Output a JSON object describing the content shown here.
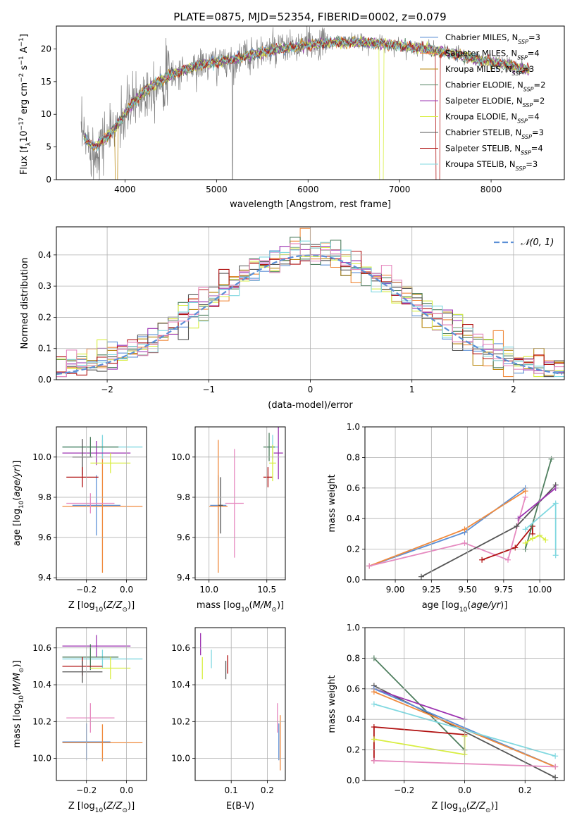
{
  "title": "PLATE=0875, MJD=52354, FIBERID=0002, z=0.079",
  "colors": {
    "Chabrier MILES": "#5b8fd6",
    "Salpeter MILES": "#f08a3c",
    "Kroupa MILES": "#b8860b",
    "Chabrier ELODIE": "#4f7f5f",
    "Salpeter ELODIE": "#9b30b0",
    "Kroupa ELODIE": "#d8ee40",
    "Chabrier STELIB": "#555555",
    "Salpeter STELIB": "#b01010",
    "Kroupa STELIB": "#80d8e0",
    "Pink": "#e68ac0",
    "Orange": "#f07020",
    "Blue": "#4a7ec8",
    "Gaussian": "#5b8fd6"
  },
  "chart_data": [
    {
      "type": "line",
      "id": "spectrum",
      "title": "PLATE=0875, MJD=52354, FIBERID=0002, z=0.079",
      "xlabel": "wavelength [Angstrom, rest frame]",
      "ylabel": "Flux [f_λ 10^-17 erg cm^-2 s^-1 A^-1]",
      "xlim": [
        3250,
        8800
      ],
      "ylim": [
        0,
        23.5
      ],
      "xticks": [
        4000,
        5000,
        6000,
        7000,
        8000
      ],
      "yticks": [
        0,
        5,
        10,
        15,
        20
      ],
      "legend_loc": "right",
      "legend": [
        {
          "base": "Chabrier MILES, N",
          "sub": "SSP",
          "tail": "=3"
        },
        {
          "base": "Salpeter MILES, N",
          "sub": "SSP",
          "tail": "=4"
        },
        {
          "base": "Kroupa MILES, N",
          "sub": "SSP",
          "tail": "=3"
        },
        {
          "base": "Chabrier ELODIE, N",
          "sub": "SSP",
          "tail": "=2"
        },
        {
          "base": "Salpeter ELODIE, N",
          "sub": "SSP",
          "tail": "=2"
        },
        {
          "base": "Kroupa ELODIE, N",
          "sub": "SSP",
          "tail": "=4"
        },
        {
          "base": "Chabrier STELIB, N",
          "sub": "SSP",
          "tail": "=3"
        },
        {
          "base": "Salpeter STELIB, N",
          "sub": "SSP",
          "tail": "=4"
        },
        {
          "base": "Kroupa STELIB, N",
          "sub": "SSP",
          "tail": "=3"
        }
      ],
      "continuum_knots": [
        [
          3550,
          6.5
        ],
        [
          3650,
          5.0
        ],
        [
          3800,
          6.5
        ],
        [
          3950,
          9.0
        ],
        [
          4100,
          12.0
        ],
        [
          4300,
          14.5
        ],
        [
          4500,
          16.0
        ],
        [
          4800,
          17.5
        ],
        [
          5000,
          18.0
        ],
        [
          5200,
          18.5
        ],
        [
          5500,
          19.5
        ],
        [
          5800,
          20.2
        ],
        [
          6000,
          20.6
        ],
        [
          6300,
          21.0
        ],
        [
          6600,
          21.0
        ],
        [
          7000,
          20.5
        ],
        [
          7300,
          20.0
        ],
        [
          7600,
          19.2
        ],
        [
          7900,
          18.2
        ],
        [
          8200,
          17.5
        ],
        [
          8400,
          16.8
        ]
      ],
      "data_range": [
        3520,
        8430
      ],
      "model_range": [
        3550,
        8420
      ]
    },
    {
      "type": "bar",
      "id": "residuals",
      "xlabel": "(data-model)/error",
      "ylabel": "Normed distribution",
      "xlim": [
        -2.5,
        2.5
      ],
      "ylim": [
        0,
        0.49
      ],
      "xticks": [
        -2,
        -1,
        0,
        1,
        2
      ],
      "yticks": [
        0.0,
        0.1,
        0.2,
        0.3,
        0.4
      ],
      "bin_width": 0.1,
      "gaussian": {
        "name": "𝒩(0, 1)",
        "mean": 0,
        "sigma": 1
      }
    },
    {
      "type": "scatter",
      "id": "z-age",
      "xlabel": "Z [log10(Z/Z⊙)]",
      "ylabel": "age  [log10(age/yr)]",
      "xlim": [
        -0.35,
        0.1
      ],
      "ylim": [
        9.39,
        10.15
      ],
      "xticks": [
        -0.2,
        0.0
      ],
      "yticks": [
        9.4,
        9.6,
        9.8,
        10.0
      ],
      "points": [
        {
          "series": "Chabrier MILES",
          "x": -0.15,
          "y": 9.76,
          "xerr": 0.12,
          "yerr": 0.15
        },
        {
          "series": "Salpeter MILES",
          "x": -0.12,
          "y": 9.755,
          "xerr": 0.2,
          "yerr": 0.33
        },
        {
          "series": "Kroupa STELIB",
          "x": -0.12,
          "y": 10.05,
          "xerr": 0.2,
          "yerr": 0.06
        },
        {
          "series": "Salpeter ELODIE",
          "x": -0.15,
          "y": 10.02,
          "xerr": 0.17,
          "yerr": 0.06
        },
        {
          "series": "Chabrier ELODIE",
          "x": -0.18,
          "y": 10.05,
          "xerr": 0.14,
          "yerr": 0.05
        },
        {
          "series": "Kroupa ELODIE",
          "x": -0.08,
          "y": 9.97,
          "xerr": 0.1,
          "yerr": 0.05
        },
        {
          "series": "Chabrier STELIB",
          "x": -0.22,
          "y": 10.0,
          "xerr": 0.05,
          "yerr": 0.09
        },
        {
          "series": "Salpeter STELIB",
          "x": -0.22,
          "y": 9.9,
          "xerr": 0.08,
          "yerr": 0.05
        },
        {
          "series": "Pink",
          "x": -0.18,
          "y": 9.77,
          "xerr": 0.12,
          "yerr": 0.05
        }
      ]
    },
    {
      "type": "scatter",
      "id": "mass-age",
      "xlabel": "mass [log10(M/M⊙)]",
      "ylabel": "",
      "xlim": [
        9.88,
        10.66
      ],
      "ylim": [
        9.39,
        10.15
      ],
      "xticks": [
        10.0,
        10.5
      ],
      "yticks": [
        9.4,
        9.6,
        9.8,
        10.0
      ],
      "points": [
        {
          "series": "Chabrier MILES",
          "x": 10.08,
          "y": 9.76,
          "xerr": 0.07,
          "yerr": 0.15
        },
        {
          "series": "Salpeter MILES",
          "x": 10.08,
          "y": 9.755,
          "xerr": 0.08,
          "yerr": 0.33
        },
        {
          "series": "Pink",
          "x": 10.22,
          "y": 9.77,
          "xerr": 0.08,
          "yerr": 0.27
        },
        {
          "series": "Chabrier STELIB",
          "x": 10.1,
          "y": 9.76,
          "xerr": 0.02,
          "yerr": 0.14
        },
        {
          "series": "Kroupa STELIB",
          "x": 10.55,
          "y": 10.05,
          "xerr": 0.05,
          "yerr": 0.06
        },
        {
          "series": "Salpeter ELODIE",
          "x": 10.6,
          "y": 10.02,
          "xerr": 0.04,
          "yerr": 0.13
        },
        {
          "series": "Chabrier ELODIE",
          "x": 10.52,
          "y": 10.05,
          "xerr": 0.05,
          "yerr": 0.07
        },
        {
          "series": "Salpeter STELIB",
          "x": 10.51,
          "y": 9.9,
          "xerr": 0.04,
          "yerr": 0.05
        },
        {
          "series": "Kroupa ELODIE",
          "x": 10.55,
          "y": 9.97,
          "xerr": 0.03,
          "yerr": 0.09
        }
      ]
    },
    {
      "type": "line",
      "id": "age-weight",
      "xlabel": "age  [log10(age/yr)]",
      "ylabel": "mass weight",
      "xlim": [
        8.79,
        10.17
      ],
      "ylim": [
        0,
        1.0
      ],
      "xticks": [
        9.0,
        9.25,
        9.5,
        9.75,
        10.0
      ],
      "yticks": [
        0.0,
        0.2,
        0.4,
        0.6,
        0.8,
        1.0
      ],
      "series": [
        {
          "name": "Chabrier MILES",
          "x": [
            8.82,
            9.48,
            9.9
          ],
          "y": [
            0.09,
            0.31,
            0.6
          ]
        },
        {
          "name": "Salpeter MILES",
          "x": [
            8.82,
            9.48,
            9.9
          ],
          "y": [
            0.09,
            0.33,
            0.58
          ]
        },
        {
          "name": "Pink",
          "x": [
            8.82,
            9.48,
            9.78,
            9.9
          ],
          "y": [
            0.09,
            0.24,
            0.13,
            0.54
          ]
        },
        {
          "name": "Chabrier STELIB",
          "x": [
            9.18,
            9.84,
            10.11
          ],
          "y": [
            0.02,
            0.35,
            0.62
          ]
        },
        {
          "name": "Salpeter STELIB",
          "x": [
            9.6,
            9.83,
            9.95,
            9.95
          ],
          "y": [
            0.13,
            0.21,
            0.35,
            0.3
          ]
        },
        {
          "name": "Chabrier ELODIE",
          "x": [
            9.9,
            10.08
          ],
          "y": [
            0.2,
            0.79
          ]
        },
        {
          "name": "Salpeter ELODIE",
          "x": [
            9.85,
            10.11
          ],
          "y": [
            0.4,
            0.6
          ]
        },
        {
          "name": "Kroupa ELODIE",
          "x": [
            9.9,
            9.95,
            10.0,
            10.04
          ],
          "y": [
            0.24,
            0.27,
            0.29,
            0.26
          ]
        },
        {
          "name": "Kroupa STELIB",
          "x": [
            9.9,
            10.11,
            10.11
          ],
          "y": [
            0.33,
            0.5,
            0.16
          ]
        }
      ]
    },
    {
      "type": "scatter",
      "id": "z-mass",
      "xlabel": "Z [log10(Z/Z⊙)]",
      "ylabel": "mass [log10(M/M⊙)]",
      "xlim": [
        -0.35,
        0.1
      ],
      "ylim": [
        9.88,
        10.71
      ],
      "xticks": [
        -0.2,
        0.0
      ],
      "yticks": [
        10.0,
        10.2,
        10.4,
        10.6
      ],
      "points": [
        {
          "series": "Chabrier MILES",
          "x": -0.2,
          "y": 10.09,
          "xerr": 0.12,
          "yerr": 0.1
        },
        {
          "series": "Salpeter MILES",
          "x": -0.12,
          "y": 10.085,
          "xerr": 0.2,
          "yerr": 0.1
        },
        {
          "series": "Pink",
          "x": -0.18,
          "y": 10.22,
          "xerr": 0.12,
          "yerr": 0.08
        },
        {
          "series": "Salpeter ELODIE",
          "x": -0.15,
          "y": 10.61,
          "xerr": 0.17,
          "yerr": 0.06
        },
        {
          "series": "Kroupa STELIB",
          "x": -0.12,
          "y": 10.54,
          "xerr": 0.2,
          "yerr": 0.05
        },
        {
          "series": "Chabrier ELODIE",
          "x": -0.18,
          "y": 10.55,
          "xerr": 0.14,
          "yerr": 0.07
        },
        {
          "series": "Salpeter STELIB",
          "x": -0.22,
          "y": 10.5,
          "xerr": 0.1,
          "yerr": 0.05
        },
        {
          "series": "Kroupa ELODIE",
          "x": -0.08,
          "y": 10.49,
          "xerr": 0.1,
          "yerr": 0.06
        },
        {
          "series": "Chabrier STELIB",
          "x": -0.22,
          "y": 10.47,
          "xerr": 0.1,
          "yerr": 0.06
        }
      ]
    },
    {
      "type": "scatter",
      "id": "ebv-mass",
      "xlabel": "E(B-V)",
      "ylabel": "",
      "xlim": [
        0.0,
        0.25
      ],
      "ylim": [
        9.88,
        10.71
      ],
      "xticks": [
        0.1,
        0.2
      ],
      "yticks": [
        10.0,
        10.2,
        10.4,
        10.6
      ],
      "points": [
        {
          "series": "Salpeter ELODIE",
          "x": 0.015,
          "y": 10.62,
          "xerr": 0,
          "yerr": 0.06
        },
        {
          "series": "Kroupa ELODIE",
          "x": 0.02,
          "y": 10.49,
          "xerr": 0,
          "yerr": 0.06
        },
        {
          "series": "Kroupa STELIB",
          "x": 0.045,
          "y": 10.54,
          "xerr": 0,
          "yerr": 0.05
        },
        {
          "series": "Chabrier STELIB",
          "x": 0.085,
          "y": 10.48,
          "xerr": 0,
          "yerr": 0.05
        },
        {
          "series": "Salpeter STELIB",
          "x": 0.09,
          "y": 10.51,
          "xerr": 0,
          "yerr": 0.05
        },
        {
          "series": "Pink",
          "x": 0.228,
          "y": 10.22,
          "xerr": 0,
          "yerr": 0.08
        },
        {
          "series": "Chabrier MILES",
          "x": 0.232,
          "y": 10.09,
          "xerr": 0,
          "yerr": 0.1
        },
        {
          "series": "Salpeter MILES",
          "x": 0.236,
          "y": 10.085,
          "xerr": 0,
          "yerr": 0.15
        }
      ]
    },
    {
      "type": "line",
      "id": "z-weight",
      "xlabel": "Z [log10(Z/Z⊙)]",
      "ylabel": "mass weight",
      "xlim": [
        -0.33,
        0.33
      ],
      "ylim": [
        0,
        1.0
      ],
      "xticks": [
        -0.2,
        0.0,
        0.2
      ],
      "yticks": [
        0.0,
        0.2,
        0.4,
        0.6,
        0.8,
        1.0
      ],
      "series": [
        {
          "name": "Chabrier ELODIE",
          "x": [
            -0.3,
            0.0
          ],
          "y": [
            0.8,
            0.2
          ]
        },
        {
          "name": "Chabrier STELIB",
          "x": [
            -0.3,
            0.3
          ],
          "y": [
            0.62,
            0.02
          ]
        },
        {
          "name": "Salpeter ELODIE",
          "x": [
            -0.3,
            0.0
          ],
          "y": [
            0.6,
            0.4
          ]
        },
        {
          "name": "Chabrier MILES",
          "x": [
            -0.3,
            0.3
          ],
          "y": [
            0.6,
            0.09
          ]
        },
        {
          "name": "Salpeter MILES",
          "x": [
            -0.3,
            0.3
          ],
          "y": [
            0.58,
            0.09
          ]
        },
        {
          "name": "Kroupa STELIB",
          "x": [
            -0.3,
            0.3
          ],
          "y": [
            0.5,
            0.16
          ]
        },
        {
          "name": "Salpeter STELIB",
          "x": [
            -0.3,
            -0.3,
            0.0
          ],
          "y": [
            0.13,
            0.35,
            0.3
          ]
        },
        {
          "name": "Kroupa ELODIE",
          "x": [
            -0.3,
            0.0,
            0.0
          ],
          "y": [
            0.27,
            0.17,
            0.29
          ]
        },
        {
          "name": "Pink",
          "x": [
            -0.3,
            0.3
          ],
          "y": [
            0.13,
            0.09
          ]
        }
      ]
    }
  ]
}
